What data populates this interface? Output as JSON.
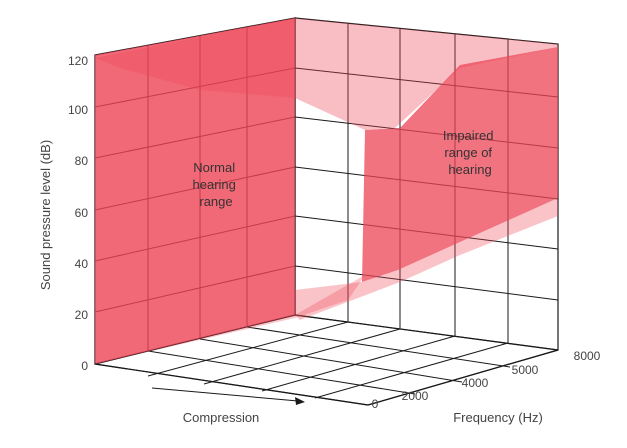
{
  "axes": {
    "y_title": "Sound pressure level (dB)",
    "y_ticks": [
      "120",
      "100",
      "80",
      "60",
      "40",
      "20",
      "0"
    ],
    "compression_title": "Compression",
    "frequency_title": "Frequency (Hz)",
    "frequency_ticks": [
      "0",
      "2000",
      "4000",
      "5000",
      "8000"
    ]
  },
  "regions": {
    "normal": [
      "Normal",
      "hearing",
      "range"
    ],
    "impaired": [
      "Impaired",
      "range of",
      "hearing"
    ]
  },
  "colors": {
    "region_fill": "#ee4455",
    "grid_line": "#1a1a1a",
    "text": "#444444"
  }
}
